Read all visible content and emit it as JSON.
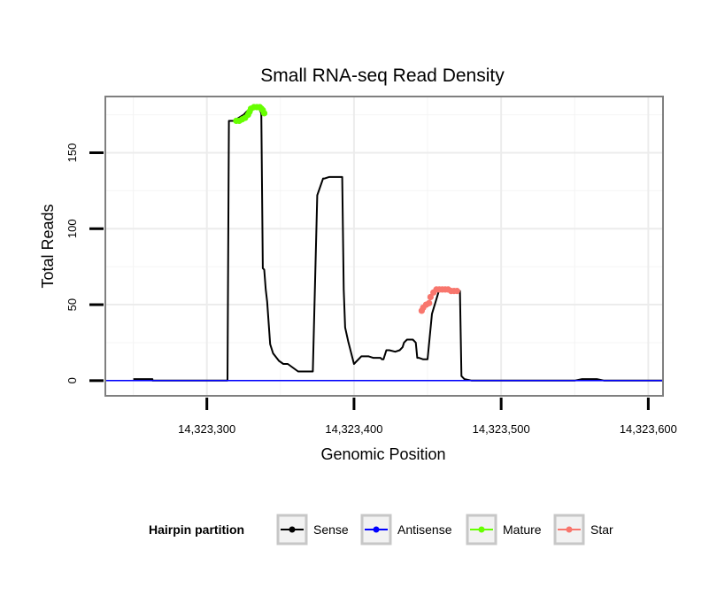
{
  "chart_data": {
    "type": "line",
    "title": "Small RNA-seq Read Density",
    "xlabel": "Genomic Position",
    "ylabel": "Total Reads",
    "xlim": [
      14323231,
      14323610
    ],
    "ylim": [
      -10,
      187
    ],
    "x_ticks": [
      14323300,
      14323400,
      14323500,
      14323600
    ],
    "x_tick_labels": [
      "14,323,300",
      "14,323,400",
      "14,323,500",
      "14,323,600"
    ],
    "y_ticks": [
      0,
      50,
      100,
      150
    ],
    "y_tick_labels": [
      "0",
      "50",
      "100",
      "150"
    ],
    "grid": true,
    "legend": {
      "title": "Hairpin partition",
      "position": "bottom",
      "entries": [
        {
          "name": "Sense",
          "color": "#000000"
        },
        {
          "name": "Antisense",
          "color": "#0000ff"
        },
        {
          "name": "Mature",
          "color": "#66ff00"
        },
        {
          "name": "Star",
          "color": "#f8766d"
        }
      ]
    },
    "series": [
      {
        "name": "Sense",
        "color": "#000000",
        "x": [
          14323250,
          14323263,
          14323263,
          14323314,
          14323315,
          14323318,
          14323320,
          14323325,
          14323328,
          14323331,
          14323333,
          14323334,
          14323335,
          14323336,
          14323337,
          14323338,
          14323339,
          14323340,
          14323341,
          14323343,
          14323345,
          14323349,
          14323352,
          14323355,
          14323362,
          14323364,
          14323365,
          14323368,
          14323371,
          14323372,
          14323375,
          14323379,
          14323380,
          14323383,
          14323384,
          14323388,
          14323392,
          14323393,
          14323394,
          14323396,
          14323400,
          14323405,
          14323410,
          14323413,
          14323415,
          14323418,
          14323419,
          14323420,
          14323422,
          14323424,
          14323428,
          14323431,
          14323433,
          14323434,
          14323436,
          14323440,
          14323442,
          14323443,
          14323444,
          14323447,
          14323450,
          14323453,
          14323458,
          14323462,
          14323468,
          14323470,
          14323472,
          14323473,
          14323475,
          14323480,
          14323550,
          14323555,
          14323565,
          14323570,
          14323575,
          14323610
        ],
        "values": [
          1,
          1,
          0,
          0,
          171,
          171,
          172,
          175,
          178,
          180,
          180,
          180,
          180,
          178,
          176,
          74,
          73,
          60,
          52,
          24,
          18,
          13,
          11,
          11,
          6,
          6,
          6,
          6,
          6,
          6,
          122,
          133,
          133,
          134,
          134,
          134,
          134,
          60,
          35,
          26,
          11,
          16,
          16,
          15,
          15,
          15,
          14,
          14,
          20,
          20,
          19,
          20,
          22,
          25,
          27,
          27,
          25,
          15,
          15,
          14,
          14,
          44,
          60,
          60,
          59,
          59,
          59,
          3,
          1,
          0,
          0,
          1,
          1,
          0,
          0,
          0
        ]
      },
      {
        "name": "Antisense",
        "color": "#0000ff",
        "x": [
          14323231,
          14323610
        ],
        "values": [
          0,
          0
        ]
      },
      {
        "name": "Mature",
        "color": "#66ff00",
        "x": [
          14323320,
          14323322,
          14323324,
          14323326,
          14323328,
          14323329,
          14323330,
          14323332,
          14323334,
          14323336,
          14323337,
          14323338,
          14323339
        ],
        "values": [
          171,
          171,
          172,
          173,
          175,
          177,
          179,
          180,
          180,
          180,
          179,
          178,
          176
        ]
      },
      {
        "name": "Star",
        "color": "#f8766d",
        "x": [
          14323446,
          14323447,
          14323449,
          14323451,
          14323452,
          14323454,
          14323456,
          14323458,
          14323460,
          14323462,
          14323464,
          14323466,
          14323468,
          14323470
        ],
        "values": [
          46,
          48,
          50,
          51,
          55,
          58,
          60,
          60,
          60,
          60,
          60,
          59,
          59,
          59
        ]
      }
    ]
  }
}
